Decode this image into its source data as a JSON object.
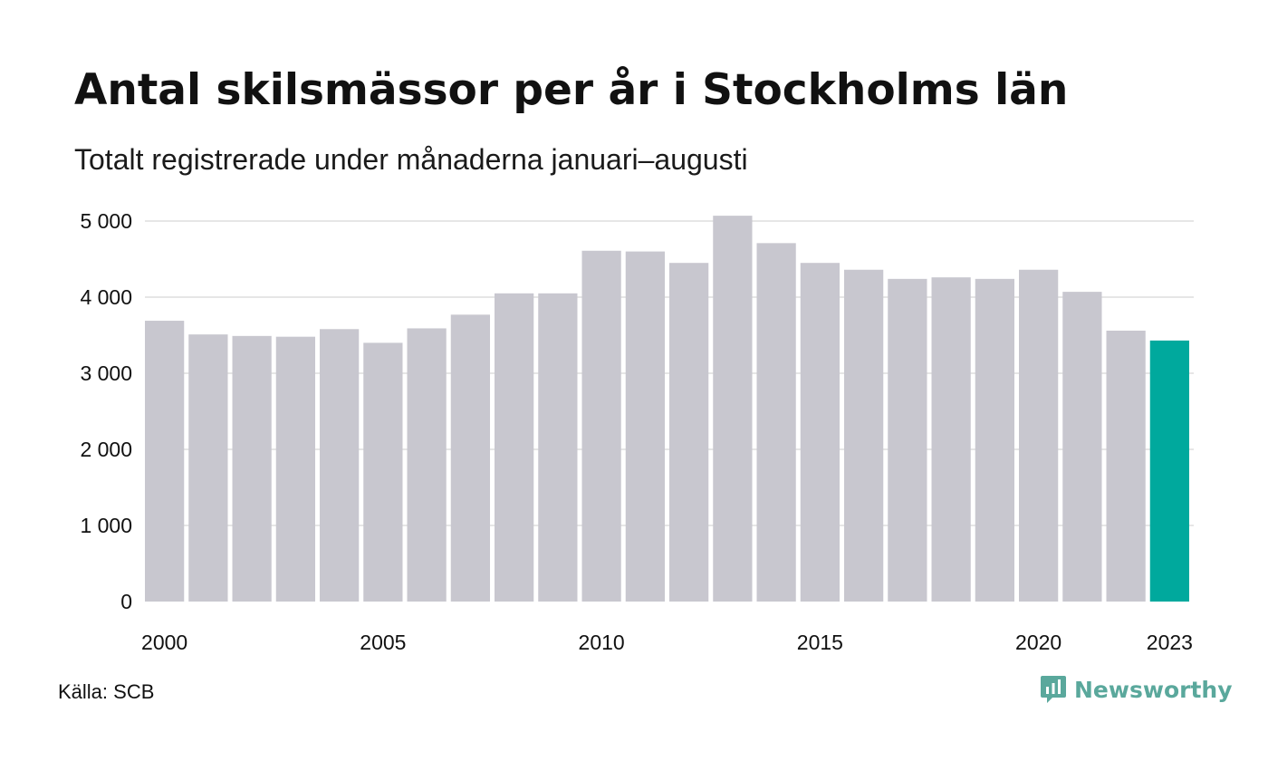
{
  "title": "Antal skilsmässor per år i Stockholms län",
  "subtitle": "Totalt registrerade under månaderna januari–augusti",
  "source": "Källa: SCB",
  "brand": "Newsworthy",
  "colors": {
    "bar": "#c8c7cf",
    "highlight": "#00a99d",
    "grid": "#e6e6e6",
    "brand": "#5aa89c"
  },
  "chart_data": {
    "type": "bar",
    "title": "Antal skilsmässor per år i Stockholms län",
    "subtitle": "Totalt registrerade under månaderna januari–augusti",
    "xlabel": "",
    "ylabel": "",
    "categories": [
      "2000",
      "2001",
      "2002",
      "2003",
      "2004",
      "2005",
      "2006",
      "2007",
      "2008",
      "2009",
      "2010",
      "2011",
      "2012",
      "2013",
      "2014",
      "2015",
      "2016",
      "2017",
      "2018",
      "2019",
      "2020",
      "2021",
      "2022",
      "2023"
    ],
    "values": [
      3690,
      3510,
      3490,
      3480,
      3580,
      3400,
      3590,
      3770,
      4050,
      4050,
      4610,
      4600,
      4450,
      5070,
      4710,
      4450,
      4360,
      4240,
      4260,
      4240,
      4360,
      4070,
      3560,
      3430
    ],
    "highlight_category": "2023",
    "ylim": [
      0,
      5000
    ],
    "yticks": [
      0,
      1000,
      2000,
      3000,
      4000,
      5000
    ],
    "ytick_labels": [
      "0",
      "1 000",
      "2 000",
      "3 000",
      "4 000",
      "5 000"
    ],
    "xtick_labels": [
      "2000",
      "2005",
      "2010",
      "2015",
      "2020",
      "2023"
    ],
    "grid": true
  }
}
